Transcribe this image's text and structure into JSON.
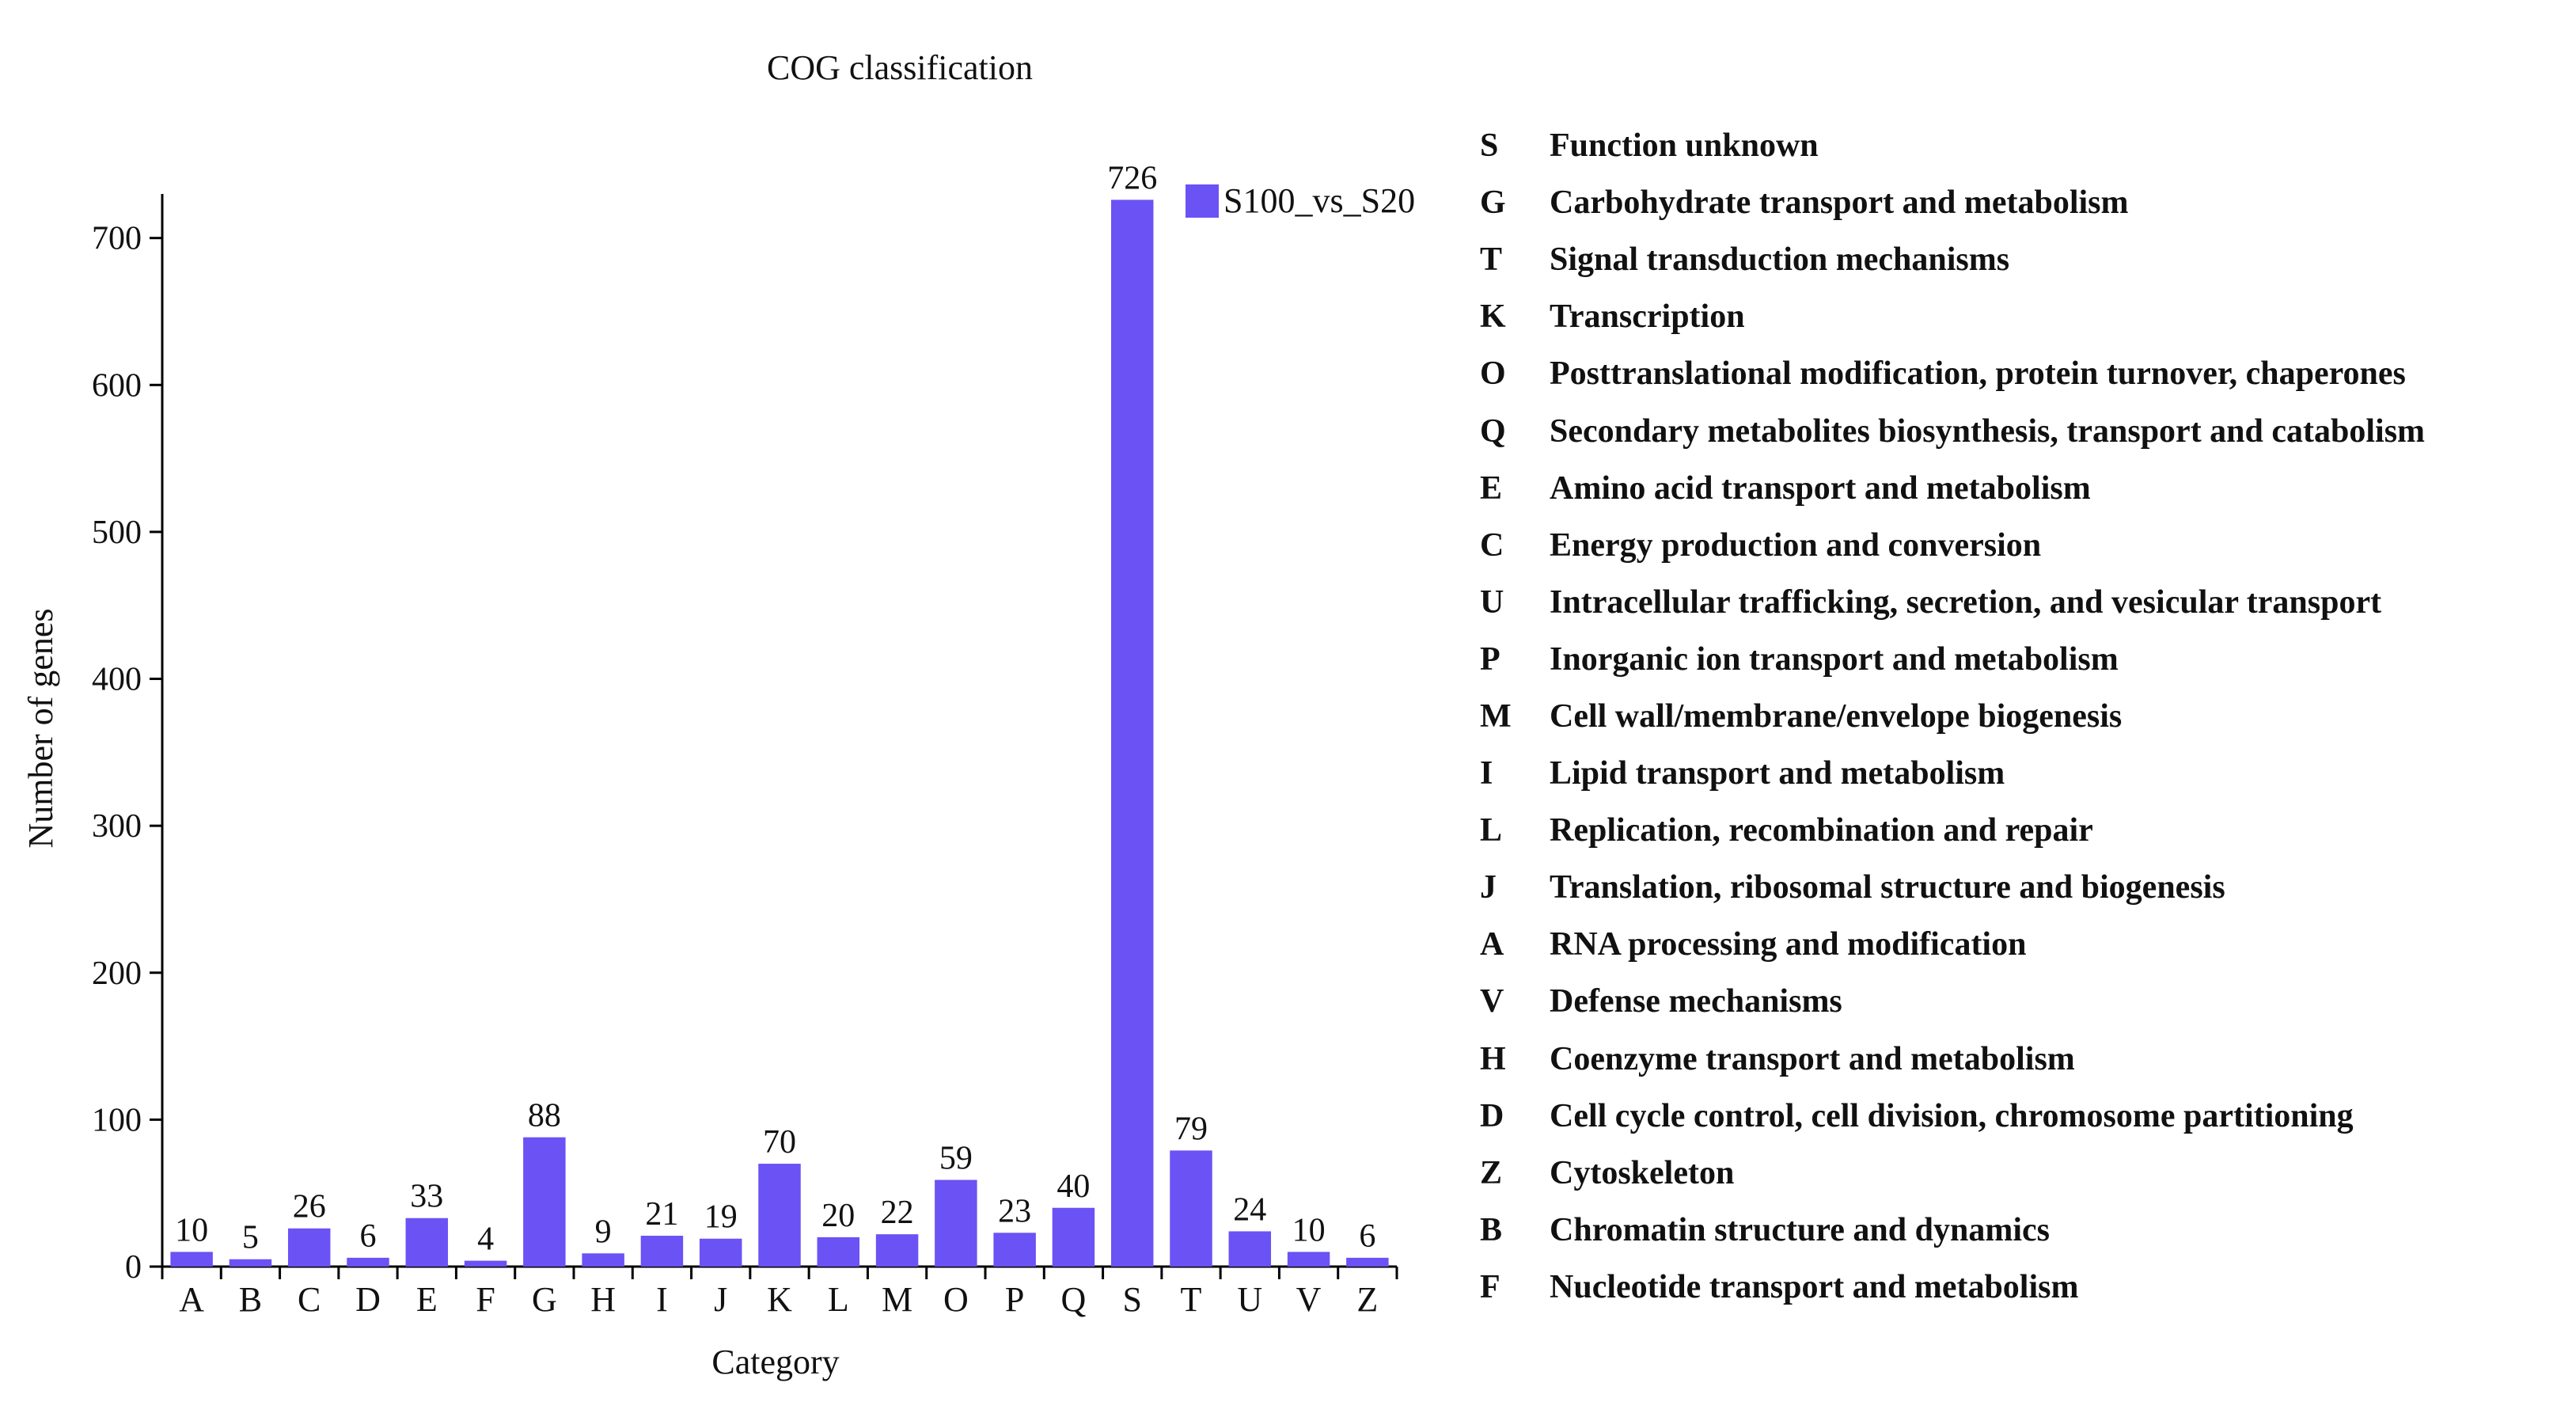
{
  "colors": {
    "bar": "#6b52f5",
    "axis": "#000000",
    "text": "#111111"
  },
  "chart_data": {
    "type": "bar",
    "title": "COG classification",
    "xlabel": "Category",
    "ylabel": "Number of genes",
    "ylim": [
      0,
      730
    ],
    "yticks": [
      0,
      100,
      200,
      300,
      400,
      500,
      600,
      700
    ],
    "grid": false,
    "legend_position": "top-right",
    "categories": [
      "A",
      "B",
      "C",
      "D",
      "E",
      "F",
      "G",
      "H",
      "I",
      "J",
      "K",
      "L",
      "M",
      "O",
      "P",
      "Q",
      "S",
      "T",
      "U",
      "V",
      "Z"
    ],
    "series": [
      {
        "name": "S100_vs_S20",
        "values": [
          10,
          5,
          26,
          6,
          33,
          4,
          88,
          9,
          21,
          19,
          70,
          20,
          22,
          59,
          23,
          40,
          726,
          79,
          24,
          10,
          6
        ]
      }
    ]
  },
  "category_legend": [
    {
      "code": "S",
      "desc": "Function unknown"
    },
    {
      "code": "G",
      "desc": "Carbohydrate transport and metabolism"
    },
    {
      "code": "T",
      "desc": "Signal transduction mechanisms"
    },
    {
      "code": "K",
      "desc": "Transcription"
    },
    {
      "code": "O",
      "desc": "Posttranslational modification, protein turnover, chaperones"
    },
    {
      "code": "Q",
      "desc": "Secondary metabolites biosynthesis, transport and catabolism"
    },
    {
      "code": "E",
      "desc": "Amino acid transport and metabolism"
    },
    {
      "code": "C",
      "desc": "Energy production and conversion"
    },
    {
      "code": "U",
      "desc": "Intracellular trafficking, secretion, and vesicular transport"
    },
    {
      "code": "P",
      "desc": "Inorganic ion transport and metabolism"
    },
    {
      "code": "M",
      "desc": "Cell wall/membrane/envelope biogenesis"
    },
    {
      "code": "I",
      "desc": "Lipid transport and metabolism"
    },
    {
      "code": "L",
      "desc": "Replication, recombination and repair"
    },
    {
      "code": "J",
      "desc": "Translation, ribosomal structure and biogenesis"
    },
    {
      "code": "A",
      "desc": "RNA processing and modification"
    },
    {
      "code": "V",
      "desc": "Defense mechanisms"
    },
    {
      "code": "H",
      "desc": "Coenzyme transport and metabolism"
    },
    {
      "code": "D",
      "desc": "Cell cycle control, cell division, chromosome partitioning"
    },
    {
      "code": "Z",
      "desc": "Cytoskeleton"
    },
    {
      "code": "B",
      "desc": "Chromatin structure and dynamics"
    },
    {
      "code": "F",
      "desc": "Nucleotide transport and metabolism"
    }
  ]
}
